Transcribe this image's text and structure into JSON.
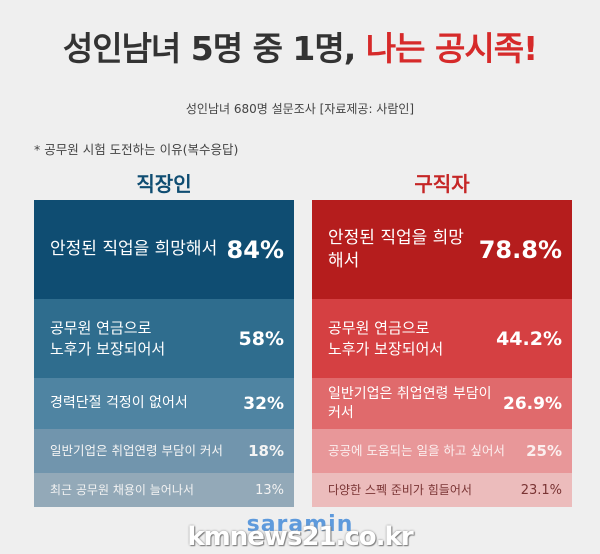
{
  "title": {
    "main": "성인남녀 5명 중 1명,",
    "accent": "나는 공시족!"
  },
  "subtitle": "성인남녀 680명 설문조사 [자료제공: 사람인]",
  "note": "* 공무원 시험 도전하는 이유(복수응답)",
  "colors": {
    "worker": "#0f4d72",
    "jobseeker": "#c52626"
  },
  "worker": {
    "heading": "직장인",
    "rows": [
      {
        "label": "안정된 직업을 희망해서",
        "pct": "84%"
      },
      {
        "label": "공무원 연금으로\n노후가 보장되어서",
        "pct": "58%"
      },
      {
        "label": "경력단절 걱정이 없어서",
        "pct": "32%"
      },
      {
        "label": "일반기업은 취업연령 부담이 커서",
        "pct": "18%"
      },
      {
        "label": "최근 공무원 채용이 늘어나서",
        "pct": "13%"
      }
    ]
  },
  "jobseeker": {
    "heading": "구직자",
    "rows": [
      {
        "label": "안정된 직업을 희망해서",
        "pct": "78.8%"
      },
      {
        "label": "공무원 연금으로\n노후가 보장되어서",
        "pct": "44.2%"
      },
      {
        "label": "일반기업은 취업연령 부담이 커서",
        "pct": "26.9%"
      },
      {
        "label": "공공에 도움되는 일을 하고 싶어서",
        "pct": "25%"
      },
      {
        "label": "다양한 스펙 준비가 힘들어서",
        "pct": "23.1%"
      }
    ]
  },
  "logo": "saramin",
  "watermark": "kmnews21.co.kr"
}
